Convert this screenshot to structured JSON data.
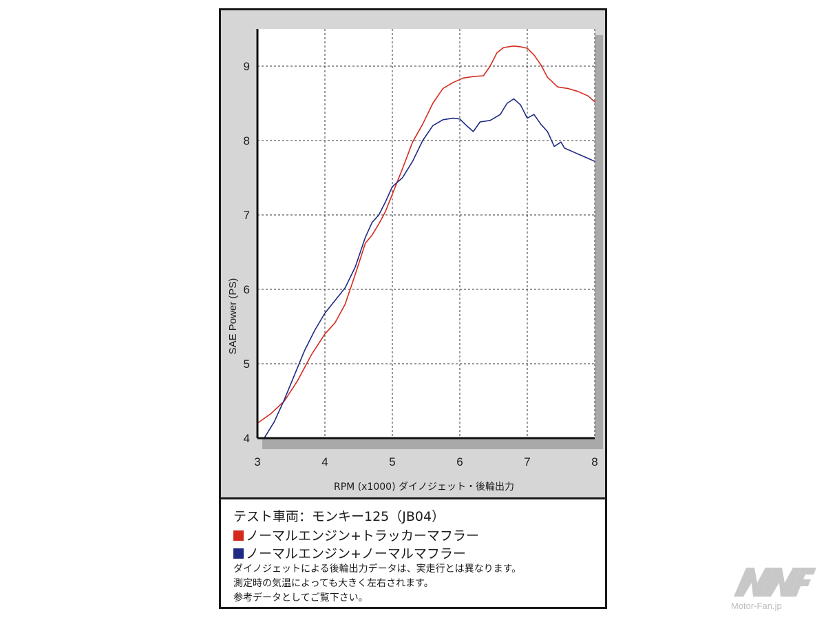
{
  "chart_data": {
    "type": "line",
    "title": "",
    "xlabel": "RPM (x1000) ダイノジェット・後輪出力",
    "ylabel": "SAE Power (PS)",
    "xlim": [
      3,
      8
    ],
    "ylim": [
      4,
      9.5
    ],
    "x_ticks": [
      "3",
      "4",
      "5",
      "6",
      "7",
      "8"
    ],
    "y_ticks": [
      "4",
      "5",
      "6",
      "7",
      "8",
      "9"
    ],
    "grid": true,
    "legend_position": "below-chart",
    "series": [
      {
        "name": "ノーマルエンジン+トラッカーマフラー",
        "color": "#d42a1e",
        "x": [
          3.0,
          3.2,
          3.4,
          3.6,
          3.8,
          4.0,
          4.15,
          4.3,
          4.45,
          4.6,
          4.7,
          4.8,
          4.9,
          5.0,
          5.15,
          5.3,
          5.45,
          5.6,
          5.75,
          5.9,
          6.05,
          6.2,
          6.35,
          6.45,
          6.55,
          6.65,
          6.8,
          6.9,
          7.0,
          7.1,
          7.2,
          7.3,
          7.45,
          7.6,
          7.75,
          7.9,
          8.0
        ],
        "y": [
          4.2,
          4.33,
          4.5,
          4.78,
          5.12,
          5.4,
          5.55,
          5.8,
          6.2,
          6.62,
          6.73,
          6.88,
          7.05,
          7.28,
          7.62,
          7.98,
          8.22,
          8.5,
          8.7,
          8.78,
          8.84,
          8.86,
          8.87,
          9.0,
          9.18,
          9.25,
          9.27,
          9.26,
          9.24,
          9.15,
          9.02,
          8.85,
          8.72,
          8.7,
          8.66,
          8.6,
          8.52
        ]
      },
      {
        "name": "ノーマルエンジン+ノーマルマフラー",
        "color": "#1e2a84",
        "x": [
          3.1,
          3.25,
          3.4,
          3.55,
          3.7,
          3.85,
          4.0,
          4.15,
          4.3,
          4.45,
          4.6,
          4.7,
          4.8,
          4.9,
          5.0,
          5.15,
          5.3,
          5.45,
          5.6,
          5.75,
          5.9,
          6.0,
          6.1,
          6.2,
          6.3,
          6.45,
          6.6,
          6.7,
          6.8,
          6.9,
          7.0,
          7.1,
          7.2,
          7.3,
          7.4,
          7.5,
          7.55,
          7.6,
          7.7,
          7.8,
          7.9,
          8.0
        ],
        "y": [
          4.0,
          4.22,
          4.52,
          4.85,
          5.18,
          5.45,
          5.68,
          5.85,
          6.02,
          6.3,
          6.7,
          6.9,
          7.0,
          7.18,
          7.38,
          7.5,
          7.72,
          8.0,
          8.2,
          8.28,
          8.3,
          8.29,
          8.2,
          8.12,
          8.25,
          8.27,
          8.35,
          8.5,
          8.56,
          8.48,
          8.3,
          8.35,
          8.22,
          8.12,
          7.92,
          7.98,
          7.9,
          7.88,
          7.84,
          7.8,
          7.76,
          7.72
        ]
      }
    ]
  },
  "info": {
    "vehicle": "テスト車両：モンキー125（JB04）",
    "legend_red": "ノーマルエンジン+トラッカーマフラー",
    "legend_blue": "ノーマルエンジン+ノーマルマフラー",
    "note_1": "ダイノジェットによる後輪出力データは、実走行とは異なります。",
    "note_2": "測定時の気温によっても大きく左右されます。",
    "note_3": "参考データとしてご覧下さい。"
  },
  "watermark": {
    "brand_text": "Motor-Fan.jp"
  }
}
